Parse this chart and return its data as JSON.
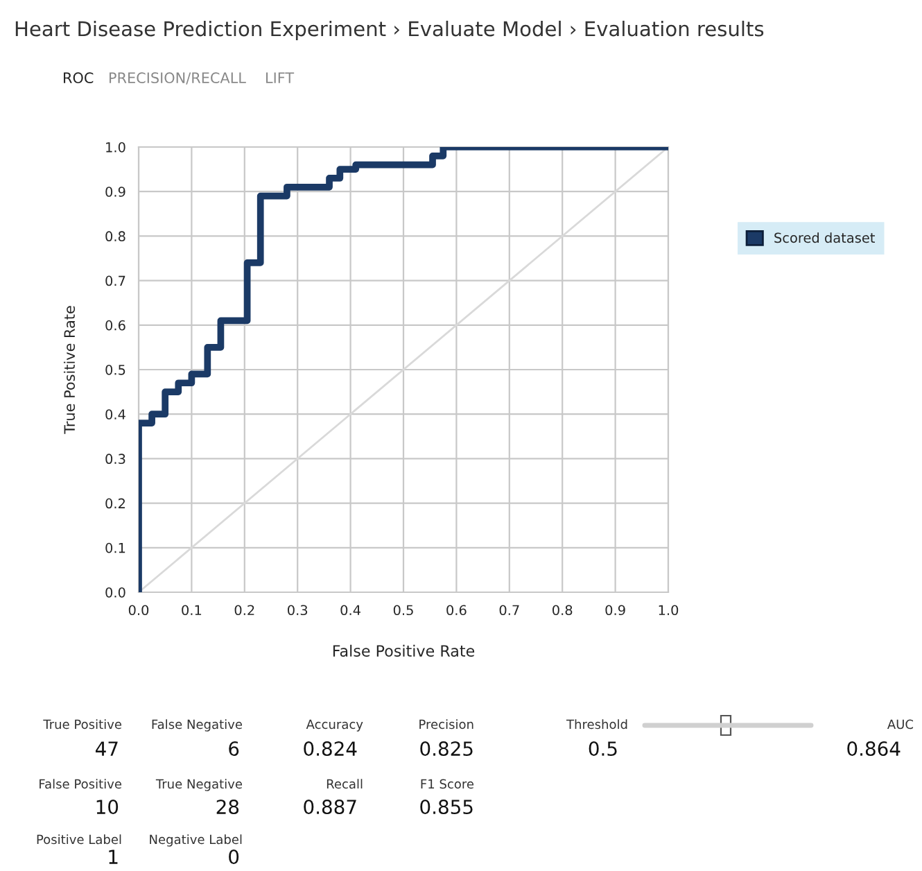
{
  "chart_data": {
    "type": "step",
    "title": "Heart Disease Prediction Experiment › Evaluate Model › Evaluation results",
    "xlabel": "False Positive Rate",
    "ylabel": "True Positive Rate",
    "series": [
      {
        "name": "Scored dataset",
        "color": "#1b3a66",
        "x": [
          0,
          0,
          0.025,
          0.05,
          0.075,
          0.1,
          0.13,
          0.155,
          0.205,
          0.23,
          0.28,
          0.36,
          0.38,
          0.41,
          0.555,
          0.575,
          1.0
        ],
        "values": [
          0,
          0.38,
          0.4,
          0.45,
          0.47,
          0.49,
          0.55,
          0.61,
          0.74,
          0.89,
          0.91,
          0.93,
          0.95,
          0.96,
          0.98,
          1.0,
          1.0
        ]
      },
      {
        "type": "line",
        "color": "#d9d9d9",
        "x": [
          0,
          1
        ],
        "values": [
          0,
          1
        ]
      }
    ],
    "xlim": [
      0,
      1
    ],
    "ylim": [
      0,
      1
    ],
    "xticks": [
      {
        "value": 0,
        "label": "0.0"
      },
      0.1,
      0.2,
      0.3,
      0.4,
      0.5,
      0.6,
      0.7,
      0.8,
      0.9,
      {
        "value": 1,
        "label": "1.0"
      }
    ],
    "yticks": [
      {
        "value": 0,
        "label": "0.0"
      },
      0.1,
      0.2,
      0.3,
      0.4,
      0.5,
      0.6,
      0.7,
      0.8,
      0.9,
      {
        "value": 1,
        "label": "1.0"
      }
    ],
    "grid": true,
    "legend": "top right",
    "annotations": [
      "ROC",
      "PRECISION/RECALL",
      "LIFT",
      "True Positive",
      "47",
      "False Negative",
      "6",
      "Accuracy",
      "0.824",
      "Precision",
      "0.825",
      "Threshold",
      "0.5",
      "AUC",
      "0.864",
      "False Positive",
      "10",
      "True Negative",
      "28",
      "Recall",
      "0.887",
      "F1 Score",
      "0.855",
      "Positive Label",
      "1",
      "Negative Label",
      "0"
    ]
  }
}
